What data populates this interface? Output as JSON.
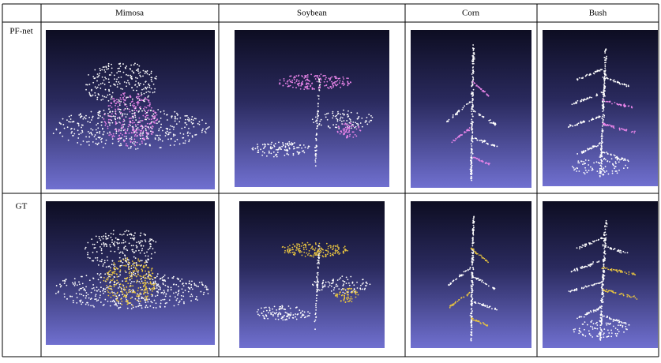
{
  "table": {
    "columns": [
      "Mimosa",
      "Soybean",
      "Corn",
      "Bush"
    ],
    "rows": [
      {
        "label": "PF-net"
      },
      {
        "label": "GT"
      }
    ]
  }
}
